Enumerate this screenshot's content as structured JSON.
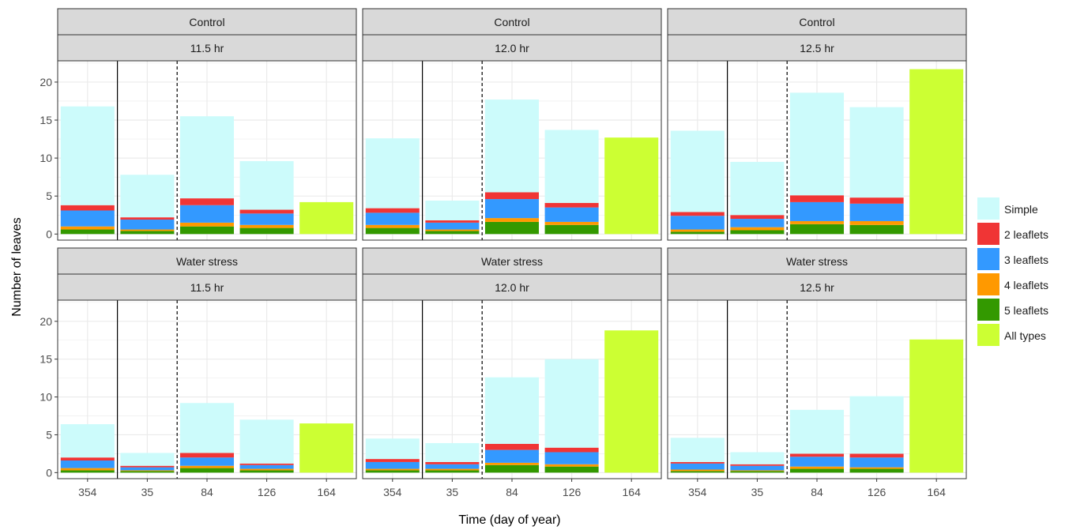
{
  "chart_data": {
    "type": "bar",
    "stacked": true,
    "xlabel": "Time (day of year)",
    "ylabel": "Number of leaves",
    "ylim": [
      -0.8,
      22.8
    ],
    "yticks": [
      0,
      5,
      10,
      15,
      20
    ],
    "categories": [
      "354",
      "35",
      "84",
      "126",
      "164"
    ],
    "grid": true,
    "legend_position": "right",
    "legend": [
      {
        "name": "Simple",
        "color": "#ccfbfb"
      },
      {
        "name": "2 leaflets",
        "color": "#f03535"
      },
      {
        "name": "3 leaflets",
        "color": "#3399ff"
      },
      {
        "name": "4 leaflets",
        "color": "#ff9900"
      },
      {
        "name": "5 leaflets",
        "color": "#339900"
      },
      {
        "name": "All types",
        "color": "#ccff33"
      }
    ],
    "colors": {
      "grid": "#ebebeb",
      "strip": "#d9d9d9",
      "border": "#333333"
    },
    "panel_rows": [
      "Control",
      "Water stress"
    ],
    "panel_cols": [
      "11.5 hr",
      "12.0 hr",
      "12.5 hr"
    ],
    "panels": [
      {
        "row": "Control",
        "col": "11.5 hr",
        "bars": [
          {
            "x": "354",
            "five": 0.6,
            "four": 0.4,
            "three": 2.1,
            "two": 0.7,
            "simple": 13.0
          },
          {
            "x": "35",
            "five": 0.4,
            "four": 0.2,
            "three": 1.3,
            "two": 0.3,
            "simple": 5.6
          },
          {
            "x": "84",
            "five": 1.0,
            "four": 0.5,
            "three": 2.3,
            "two": 0.9,
            "simple": 10.8
          },
          {
            "x": "126",
            "five": 0.8,
            "four": 0.4,
            "three": 1.5,
            "two": 0.5,
            "simple": 6.4
          },
          {
            "x": "164",
            "all": 4.2
          }
        ]
      },
      {
        "row": "Control",
        "col": "12.0 hr",
        "bars": [
          {
            "x": "354",
            "five": 0.8,
            "four": 0.4,
            "three": 1.6,
            "two": 0.6,
            "simple": 9.2
          },
          {
            "x": "35",
            "five": 0.4,
            "four": 0.2,
            "three": 0.9,
            "two": 0.3,
            "simple": 2.6
          },
          {
            "x": "84",
            "five": 1.6,
            "four": 0.5,
            "three": 2.5,
            "two": 0.9,
            "simple": 12.2
          },
          {
            "x": "126",
            "five": 1.2,
            "four": 0.4,
            "three": 1.9,
            "two": 0.6,
            "simple": 9.6
          },
          {
            "x": "164",
            "all": 12.7
          }
        ]
      },
      {
        "row": "Control",
        "col": "12.5 hr",
        "bars": [
          {
            "x": "354",
            "five": 0.3,
            "four": 0.3,
            "three": 1.8,
            "two": 0.5,
            "simple": 10.7
          },
          {
            "x": "35",
            "five": 0.5,
            "four": 0.4,
            "three": 1.1,
            "two": 0.5,
            "simple": 7.0
          },
          {
            "x": "84",
            "five": 1.3,
            "four": 0.4,
            "three": 2.5,
            "two": 0.9,
            "simple": 13.5
          },
          {
            "x": "126",
            "five": 1.2,
            "four": 0.5,
            "three": 2.3,
            "two": 0.8,
            "simple": 11.9
          },
          {
            "x": "164",
            "all": 21.7
          }
        ]
      },
      {
        "row": "Water stress",
        "col": "11.5 hr",
        "bars": [
          {
            "x": "354",
            "five": 0.3,
            "four": 0.3,
            "three": 1.0,
            "two": 0.4,
            "simple": 4.4
          },
          {
            "x": "35",
            "five": 0.2,
            "four": 0.1,
            "three": 0.4,
            "two": 0.2,
            "simple": 1.7
          },
          {
            "x": "84",
            "five": 0.6,
            "four": 0.3,
            "three": 1.1,
            "two": 0.6,
            "simple": 6.6
          },
          {
            "x": "126",
            "five": 0.3,
            "four": 0.2,
            "three": 0.5,
            "two": 0.2,
            "simple": 5.8
          },
          {
            "x": "164",
            "all": 6.5
          }
        ]
      },
      {
        "row": "Water stress",
        "col": "12.0 hr",
        "bars": [
          {
            "x": "354",
            "five": 0.3,
            "four": 0.2,
            "three": 0.9,
            "two": 0.4,
            "simple": 2.7
          },
          {
            "x": "35",
            "five": 0.3,
            "four": 0.2,
            "three": 0.6,
            "two": 0.3,
            "simple": 2.5
          },
          {
            "x": "84",
            "five": 1.0,
            "four": 0.3,
            "three": 1.7,
            "two": 0.8,
            "simple": 8.8
          },
          {
            "x": "126",
            "five": 0.8,
            "four": 0.3,
            "three": 1.6,
            "two": 0.6,
            "simple": 11.7
          },
          {
            "x": "164",
            "all": 18.8
          }
        ]
      },
      {
        "row": "Water stress",
        "col": "12.5 hr",
        "bars": [
          {
            "x": "354",
            "five": 0.2,
            "four": 0.2,
            "three": 0.8,
            "two": 0.2,
            "simple": 3.2
          },
          {
            "x": "35",
            "five": 0.2,
            "four": 0.1,
            "three": 0.6,
            "two": 0.2,
            "simple": 1.6
          },
          {
            "x": "84",
            "five": 0.5,
            "four": 0.3,
            "three": 1.3,
            "two": 0.4,
            "simple": 5.8
          },
          {
            "x": "126",
            "five": 0.5,
            "four": 0.2,
            "three": 1.3,
            "two": 0.5,
            "simple": 7.6
          },
          {
            "x": "164",
            "all": 17.6
          }
        ]
      }
    ]
  }
}
